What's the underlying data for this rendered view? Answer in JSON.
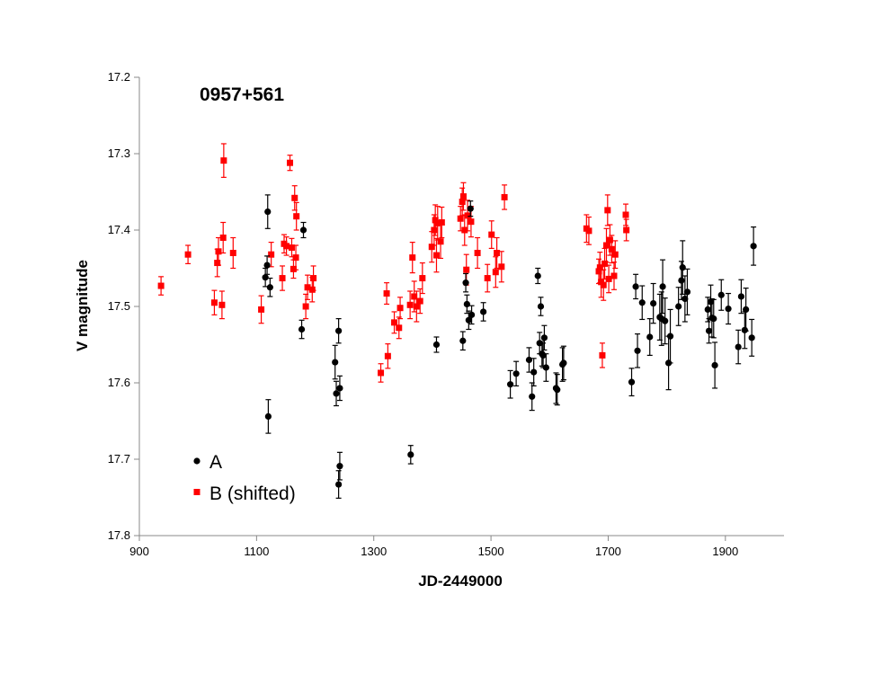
{
  "chart_data": {
    "type": "scatter",
    "title": "0957+561",
    "xlabel": "JD-2449000",
    "ylabel": "V magnitude",
    "xlim": [
      900,
      2000
    ],
    "ylim": [
      17.2,
      17.8
    ],
    "y_inverted": true,
    "x_ticks": [
      "900",
      "1100",
      "1300",
      "1500",
      "1700",
      "1900"
    ],
    "y_ticks": [
      "17.2",
      "17.3",
      "17.4",
      "17.5",
      "17.6",
      "17.7",
      "17.8"
    ],
    "grid": false,
    "legend_position": "bottom-left",
    "error_bars": true,
    "series": [
      {
        "name": "A",
        "color": "#000000",
        "marker": "circle",
        "points": [
          [
            1115,
            17.462,
            0.012
          ],
          [
            1118,
            17.446,
            0.012
          ],
          [
            1119,
            17.376,
            0.022
          ],
          [
            1120,
            17.644,
            0.022
          ],
          [
            1123,
            17.475,
            0.012
          ],
          [
            1177,
            17.53,
            0.012
          ],
          [
            1180,
            17.4,
            0.01
          ],
          [
            1234,
            17.573,
            0.022
          ],
          [
            1236,
            17.614,
            0.016
          ],
          [
            1240,
            17.532,
            0.016
          ],
          [
            1240,
            17.733,
            0.018
          ],
          [
            1242,
            17.709,
            0.018
          ],
          [
            1242,
            17.607,
            0.016
          ],
          [
            1363,
            17.694,
            0.012
          ],
          [
            1407,
            17.55,
            0.01
          ],
          [
            1452,
            17.545,
            0.012
          ],
          [
            1457,
            17.469,
            0.012
          ],
          [
            1459,
            17.497,
            0.012
          ],
          [
            1462,
            17.518,
            0.012
          ],
          [
            1465,
            17.372,
            0.01
          ],
          [
            1467,
            17.511,
            0.012
          ],
          [
            1487,
            17.507,
            0.012
          ],
          [
            1533,
            17.602,
            0.018
          ],
          [
            1543,
            17.588,
            0.016
          ],
          [
            1565,
            17.57,
            0.016
          ],
          [
            1570,
            17.618,
            0.018
          ],
          [
            1573,
            17.586,
            0.018
          ],
          [
            1580,
            17.46,
            0.01
          ],
          [
            1583,
            17.548,
            0.014
          ],
          [
            1585,
            17.5,
            0.012
          ],
          [
            1587,
            17.562,
            0.016
          ],
          [
            1589,
            17.564,
            0.016
          ],
          [
            1591,
            17.541,
            0.016
          ],
          [
            1594,
            17.58,
            0.018
          ],
          [
            1611,
            17.607,
            0.02
          ],
          [
            1613,
            17.609,
            0.02
          ],
          [
            1622,
            17.576,
            0.022
          ],
          [
            1624,
            17.574,
            0.022
          ],
          [
            1740,
            17.599,
            0.018
          ],
          [
            1747,
            17.474,
            0.016
          ],
          [
            1750,
            17.558,
            0.022
          ],
          [
            1758,
            17.495,
            0.022
          ],
          [
            1771,
            17.54,
            0.024
          ],
          [
            1777,
            17.496,
            0.026
          ],
          [
            1788,
            17.514,
            0.03
          ],
          [
            1791,
            17.516,
            0.035
          ],
          [
            1793,
            17.474,
            0.035
          ],
          [
            1797,
            17.519,
            0.03
          ],
          [
            1803,
            17.574,
            0.035
          ],
          [
            1806,
            17.539,
            0.035
          ],
          [
            1820,
            17.5,
            0.025
          ],
          [
            1825,
            17.466,
            0.025
          ],
          [
            1827,
            17.449,
            0.035
          ],
          [
            1831,
            17.49,
            0.03
          ],
          [
            1835,
            17.481,
            0.03
          ],
          [
            1870,
            17.504,
            0.016
          ],
          [
            1872,
            17.532,
            0.016
          ],
          [
            1875,
            17.494,
            0.022
          ],
          [
            1877,
            17.515,
            0.025
          ],
          [
            1880,
            17.516,
            0.025
          ],
          [
            1882,
            17.577,
            0.03
          ],
          [
            1893,
            17.485,
            0.02
          ],
          [
            1905,
            17.503,
            0.02
          ],
          [
            1922,
            17.553,
            0.022
          ],
          [
            1927,
            17.487,
            0.022
          ],
          [
            1933,
            17.531,
            0.024
          ],
          [
            1935,
            17.504,
            0.028
          ],
          [
            1945,
            17.541,
            0.024
          ],
          [
            1948,
            17.421,
            0.025
          ]
        ]
      },
      {
        "name": "B (shifted)",
        "color": "#ff0000",
        "marker": "square",
        "points": [
          [
            937,
            17.473,
            0.012
          ],
          [
            983,
            17.432,
            0.012
          ],
          [
            1028,
            17.495,
            0.016
          ],
          [
            1033,
            17.443,
            0.018
          ],
          [
            1035,
            17.428,
            0.018
          ],
          [
            1041,
            17.498,
            0.018
          ],
          [
            1043,
            17.41,
            0.02
          ],
          [
            1044,
            17.309,
            0.022
          ],
          [
            1060,
            17.43,
            0.02
          ],
          [
            1108,
            17.504,
            0.018
          ],
          [
            1125,
            17.432,
            0.016
          ],
          [
            1144,
            17.463,
            0.016
          ],
          [
            1147,
            17.418,
            0.012
          ],
          [
            1151,
            17.421,
            0.012
          ],
          [
            1157,
            17.312,
            0.01
          ],
          [
            1160,
            17.423,
            0.012
          ],
          [
            1163,
            17.451,
            0.012
          ],
          [
            1165,
            17.358,
            0.016
          ],
          [
            1167,
            17.436,
            0.016
          ],
          [
            1168,
            17.382,
            0.018
          ],
          [
            1184,
            17.5,
            0.016
          ],
          [
            1187,
            17.475,
            0.016
          ],
          [
            1195,
            17.478,
            0.016
          ],
          [
            1197,
            17.463,
            0.016
          ],
          [
            1312,
            17.587,
            0.012
          ],
          [
            1322,
            17.483,
            0.014
          ],
          [
            1324,
            17.565,
            0.016
          ],
          [
            1335,
            17.521,
            0.014
          ],
          [
            1343,
            17.528,
            0.014
          ],
          [
            1345,
            17.502,
            0.014
          ],
          [
            1362,
            17.498,
            0.018
          ],
          [
            1366,
            17.436,
            0.02
          ],
          [
            1369,
            17.487,
            0.02
          ],
          [
            1373,
            17.5,
            0.02
          ],
          [
            1379,
            17.493,
            0.016
          ],
          [
            1383,
            17.463,
            0.02
          ],
          [
            1399,
            17.422,
            0.02
          ],
          [
            1403,
            17.4,
            0.02
          ],
          [
            1405,
            17.387,
            0.02
          ],
          [
            1407,
            17.433,
            0.022
          ],
          [
            1409,
            17.391,
            0.022
          ],
          [
            1414,
            17.415,
            0.022
          ],
          [
            1416,
            17.39,
            0.02
          ],
          [
            1448,
            17.385,
            0.016
          ],
          [
            1451,
            17.363,
            0.018
          ],
          [
            1453,
            17.356,
            0.018
          ],
          [
            1455,
            17.4,
            0.02
          ],
          [
            1458,
            17.452,
            0.02
          ],
          [
            1460,
            17.381,
            0.02
          ],
          [
            1466,
            17.389,
            0.02
          ],
          [
            1477,
            17.43,
            0.02
          ],
          [
            1494,
            17.463,
            0.018
          ],
          [
            1501,
            17.406,
            0.018
          ],
          [
            1508,
            17.455,
            0.02
          ],
          [
            1510,
            17.43,
            0.02
          ],
          [
            1518,
            17.448,
            0.02
          ],
          [
            1523,
            17.357,
            0.016
          ],
          [
            1663,
            17.398,
            0.018
          ],
          [
            1667,
            17.401,
            0.018
          ],
          [
            1684,
            17.454,
            0.016
          ],
          [
            1686,
            17.449,
            0.02
          ],
          [
            1688,
            17.468,
            0.02
          ],
          [
            1690,
            17.564,
            0.016
          ],
          [
            1692,
            17.472,
            0.02
          ],
          [
            1694,
            17.444,
            0.02
          ],
          [
            1697,
            17.42,
            0.022
          ],
          [
            1699,
            17.374,
            0.02
          ],
          [
            1701,
            17.464,
            0.018
          ],
          [
            1703,
            17.413,
            0.02
          ],
          [
            1706,
            17.425,
            0.018
          ],
          [
            1710,
            17.46,
            0.018
          ],
          [
            1712,
            17.432,
            0.018
          ],
          [
            1730,
            17.38,
            0.014
          ],
          [
            1731,
            17.4,
            0.014
          ]
        ]
      }
    ]
  }
}
